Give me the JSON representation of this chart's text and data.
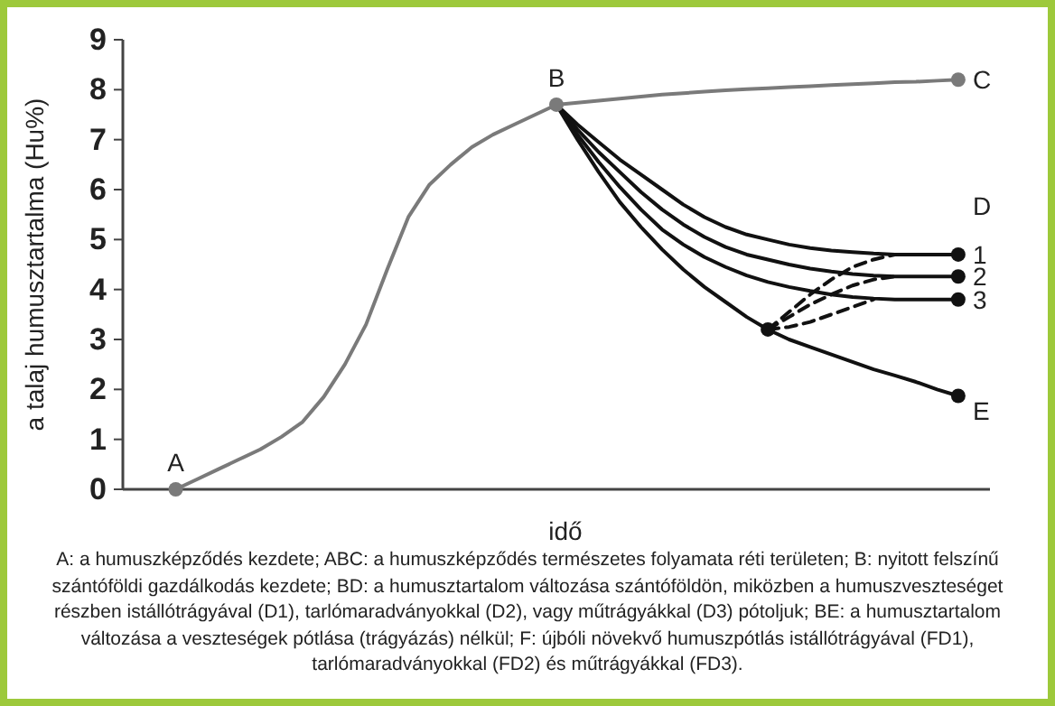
{
  "chart_data": {
    "type": "line",
    "xlabel": "idő",
    "ylabel": "a talaj humusztartalma (Hu%)",
    "ylim": [
      0,
      9
    ],
    "yticks": [
      0,
      1,
      2,
      3,
      4,
      5,
      6,
      7,
      8,
      9
    ],
    "tick_labels": "y",
    "legend": "right",
    "marker": "none",
    "categories": [
      null,
      null,
      null,
      null,
      null,
      null,
      null,
      null,
      null,
      null,
      null,
      null,
      null,
      null,
      null,
      null,
      null,
      null,
      null,
      null,
      null,
      null,
      null,
      null,
      null,
      null,
      null,
      null,
      null,
      null,
      null,
      null,
      null,
      null,
      null,
      null,
      null,
      null,
      null,
      null,
      null
    ],
    "series": [
      {
        "color": "#7a7a7a",
        "values": [
          null,
          null,
          0,
          0.2,
          0.4,
          0.6,
          0.8,
          1.05,
          1.35,
          1.85,
          2.5,
          3.3,
          4.4,
          5.45,
          6.1,
          6.5,
          6.85,
          7.1,
          7.3,
          7.5,
          7.7,
          null,
          null,
          null,
          null,
          null,
          null,
          null,
          null,
          null,
          null,
          null,
          null,
          null,
          null,
          null,
          null,
          null,
          null,
          null,
          null
        ]
      },
      {
        "name": "C",
        "color": "#7a7a7a",
        "values": [
          null,
          null,
          null,
          null,
          null,
          null,
          null,
          null,
          null,
          null,
          null,
          null,
          null,
          null,
          null,
          null,
          null,
          null,
          null,
          null,
          7.7,
          7.74,
          7.78,
          7.82,
          7.86,
          7.9,
          7.93,
          7.96,
          7.99,
          8.01,
          8.03,
          8.05,
          8.07,
          8.09,
          8.11,
          8.13,
          8.15,
          8.16,
          8.18,
          8.2,
          null
        ]
      },
      {
        "name": "1",
        "color": "#111111",
        "values": [
          null,
          null,
          null,
          null,
          null,
          null,
          null,
          null,
          null,
          null,
          null,
          null,
          null,
          null,
          null,
          null,
          null,
          null,
          null,
          null,
          7.7,
          7.3,
          6.95,
          6.6,
          6.3,
          6.0,
          5.7,
          5.45,
          5.25,
          5.1,
          5.0,
          4.9,
          4.83,
          4.78,
          4.75,
          4.72,
          4.7,
          4.7,
          4.7,
          4.7,
          null
        ]
      },
      {
        "name": "2",
        "color": "#111111",
        "values": [
          null,
          null,
          null,
          null,
          null,
          null,
          null,
          null,
          null,
          null,
          null,
          null,
          null,
          null,
          null,
          null,
          null,
          null,
          null,
          null,
          7.7,
          7.2,
          6.75,
          6.35,
          5.95,
          5.6,
          5.3,
          5.05,
          4.85,
          4.7,
          4.6,
          4.5,
          4.42,
          4.36,
          4.31,
          4.28,
          4.26,
          4.26,
          4.26,
          4.26,
          null
        ]
      },
      {
        "name": "3",
        "color": "#111111",
        "values": [
          null,
          null,
          null,
          null,
          null,
          null,
          null,
          null,
          null,
          null,
          null,
          null,
          null,
          null,
          null,
          null,
          null,
          null,
          null,
          null,
          7.7,
          7.1,
          6.55,
          6.05,
          5.6,
          5.2,
          4.9,
          4.65,
          4.45,
          4.28,
          4.15,
          4.05,
          3.97,
          3.9,
          3.85,
          3.82,
          3.8,
          3.8,
          3.8,
          3.8,
          null
        ]
      },
      {
        "name": "E",
        "color": "#111111",
        "values": [
          null,
          null,
          null,
          null,
          null,
          null,
          null,
          null,
          null,
          null,
          null,
          null,
          null,
          null,
          null,
          null,
          null,
          null,
          null,
          null,
          7.7,
          7.0,
          6.35,
          5.75,
          5.25,
          4.8,
          4.4,
          4.05,
          3.75,
          3.45,
          3.2,
          3.0,
          2.85,
          2.7,
          2.55,
          2.4,
          2.28,
          2.15,
          2.0,
          1.87,
          null
        ]
      },
      {
        "color": "#111111",
        "line_style": "dashed",
        "values": [
          null,
          null,
          null,
          null,
          null,
          null,
          null,
          null,
          null,
          null,
          null,
          null,
          null,
          null,
          null,
          null,
          null,
          null,
          null,
          null,
          null,
          null,
          null,
          null,
          null,
          null,
          null,
          null,
          null,
          null,
          3.2,
          3.55,
          3.9,
          4.2,
          4.45,
          4.6,
          4.7,
          null,
          null,
          null,
          null
        ]
      },
      {
        "color": "#111111",
        "line_style": "dashed",
        "values": [
          null,
          null,
          null,
          null,
          null,
          null,
          null,
          null,
          null,
          null,
          null,
          null,
          null,
          null,
          null,
          null,
          null,
          null,
          null,
          null,
          null,
          null,
          null,
          null,
          null,
          null,
          null,
          null,
          null,
          null,
          3.2,
          3.45,
          3.7,
          3.9,
          4.08,
          4.2,
          4.26,
          null,
          null,
          null,
          null
        ]
      },
      {
        "color": "#111111",
        "line_style": "dashed",
        "values": [
          null,
          null,
          null,
          null,
          null,
          null,
          null,
          null,
          null,
          null,
          null,
          null,
          null,
          null,
          null,
          null,
          null,
          null,
          null,
          null,
          null,
          null,
          null,
          null,
          null,
          null,
          null,
          null,
          null,
          null,
          3.2,
          3.25,
          3.35,
          3.5,
          3.65,
          3.8,
          null,
          null,
          null,
          null,
          null
        ]
      },
      {
        "type": "scatter",
        "marker": "circle",
        "color": "#7a7a7a",
        "values": [
          null,
          null,
          0,
          null,
          null,
          null,
          null,
          null,
          null,
          null,
          null,
          null,
          null,
          null,
          null,
          null,
          null,
          null,
          null,
          null,
          7.7,
          null,
          null,
          null,
          null,
          null,
          null,
          null,
          null,
          null,
          null,
          null,
          null,
          null,
          null,
          null,
          null,
          null,
          null,
          8.2,
          null
        ]
      },
      {
        "type": "scatter",
        "marker": "circle",
        "color": "#111111",
        "values": [
          null,
          null,
          null,
          null,
          null,
          null,
          null,
          null,
          null,
          null,
          null,
          null,
          null,
          null,
          null,
          null,
          null,
          null,
          null,
          null,
          null,
          null,
          null,
          null,
          null,
          null,
          null,
          null,
          null,
          null,
          3.2,
          null,
          null,
          null,
          null,
          null,
          null,
          null,
          null,
          4.7,
          null
        ]
      },
      {
        "type": "scatter",
        "marker": "circle",
        "color": "#111111",
        "values": [
          null,
          null,
          null,
          null,
          null,
          null,
          null,
          null,
          null,
          null,
          null,
          null,
          null,
          null,
          null,
          null,
          null,
          null,
          null,
          null,
          null,
          null,
          null,
          null,
          null,
          null,
          null,
          null,
          null,
          null,
          null,
          null,
          null,
          null,
          null,
          null,
          null,
          null,
          null,
          4.26,
          null
        ]
      },
      {
        "type": "scatter",
        "marker": "circle",
        "color": "#111111",
        "values": [
          null,
          null,
          null,
          null,
          null,
          null,
          null,
          null,
          null,
          null,
          null,
          null,
          null,
          null,
          null,
          null,
          null,
          null,
          null,
          null,
          null,
          null,
          null,
          null,
          null,
          null,
          null,
          null,
          null,
          null,
          null,
          null,
          null,
          null,
          null,
          null,
          null,
          null,
          null,
          3.8,
          null
        ]
      },
      {
        "type": "scatter",
        "marker": "circle",
        "color": "#111111",
        "values": [
          null,
          null,
          null,
          null,
          null,
          null,
          null,
          null,
          null,
          null,
          null,
          null,
          null,
          null,
          null,
          null,
          null,
          null,
          null,
          null,
          null,
          null,
          null,
          null,
          null,
          null,
          null,
          null,
          null,
          null,
          null,
          null,
          null,
          null,
          null,
          null,
          null,
          null,
          null,
          1.87,
          null
        ]
      }
    ],
    "annotations": [
      {
        "text": "A",
        "y": 0
      },
      {
        "text": "B",
        "y": 7.7
      },
      "D",
      "A: a humuszképződés kezdete; ABC: a humuszképződés természetes folyamata réti területen; B: nyitott felszínű szántóföldi gazdálkodás kezdete; BD: a humusztartalom változása szántóföldön, miközben a humuszveszteséget részben istállótrágyával (D1), tarlómaradványokkal (D2), vagy műtrágyákkal (D3) pótoljuk; BE: a humusztartalom változása a veszteségek pótlása (trágyázás) nélkül; F: újbóli növekvő humuszpótlás istállótrágyával (FD1), tarlómaradványokkal (FD2) és műtrágyákkal (FD3)."
    ]
  }
}
